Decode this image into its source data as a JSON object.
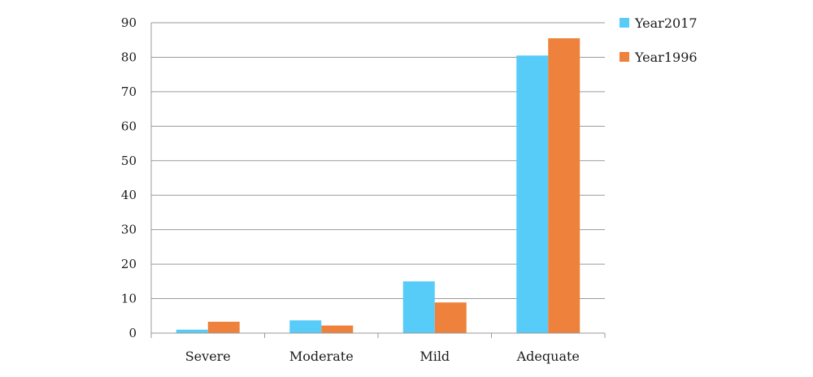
{
  "chart_data": {
    "type": "bar",
    "categories": [
      "Severe",
      "Moderate",
      "Mild",
      "Adequate"
    ],
    "series": [
      {
        "name": "Year2017",
        "color": "#57CCF9",
        "values": [
          1,
          3.7,
          15,
          80.5
        ]
      },
      {
        "name": "Year1996",
        "color": "#EE823C",
        "values": [
          3.3,
          2.2,
          8.9,
          85.5
        ]
      }
    ],
    "yticks": [
      0,
      10,
      20,
      30,
      40,
      50,
      60,
      70,
      80,
      90
    ],
    "ylim": [
      0,
      90
    ],
    "grid": true,
    "legend_position": "top-right"
  }
}
